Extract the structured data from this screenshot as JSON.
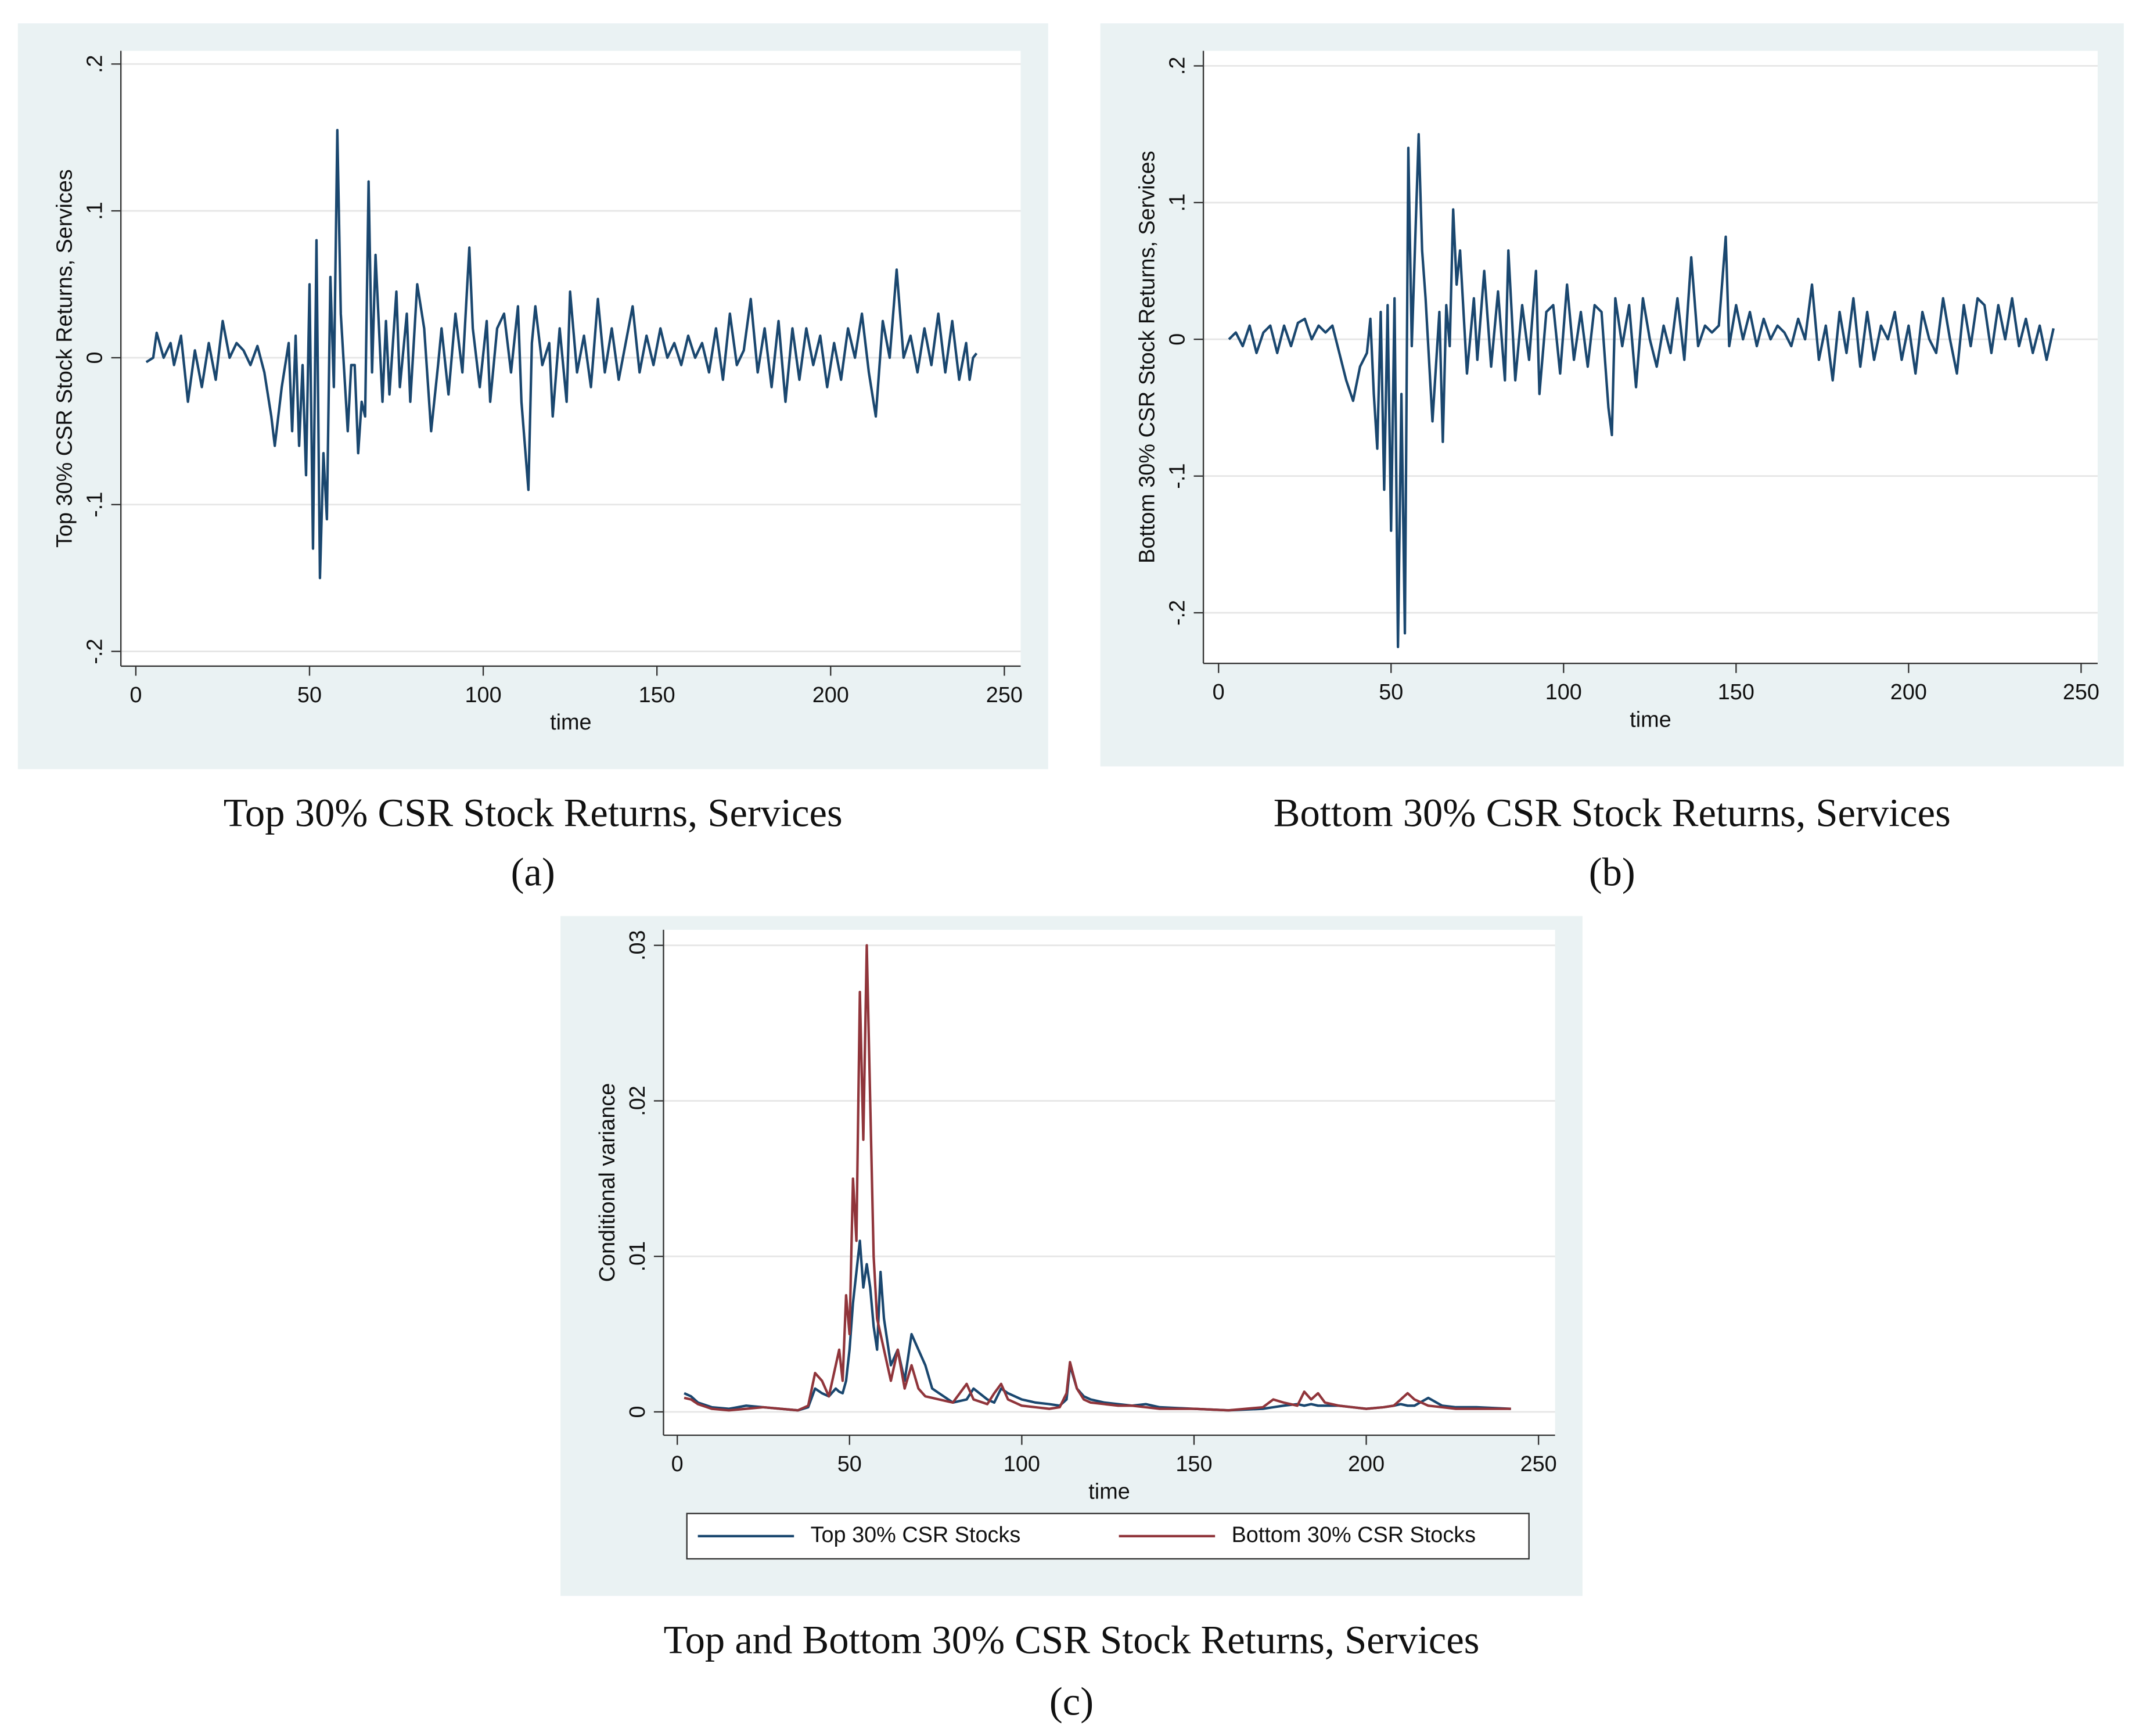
{
  "chart_data": [
    {
      "type": "line",
      "title": "Top 30% CSR Stock Returns, Services",
      "panel_label": "(a)",
      "xlabel": "time",
      "ylabel": "Top 30% CSR Stock Returns, Services",
      "xlim": [
        -4.3,
        254.7
      ],
      "ylim": [
        -0.21,
        0.209
      ],
      "xticks": [
        0,
        50,
        100,
        150,
        200,
        250
      ],
      "yticks": [
        {
          "value": -0.2,
          "label": "-.2"
        },
        {
          "value": -0.1,
          "label": "-.1"
        },
        0,
        {
          "value": 0.1,
          "label": ".1"
        },
        {
          "value": 0.2,
          "label": ".2"
        }
      ],
      "grid": true,
      "background": "#eaf2f3",
      "x": [
        3,
        5,
        6,
        8,
        10,
        11,
        13,
        15,
        17,
        19,
        21,
        23,
        25,
        27,
        29,
        31,
        33,
        35,
        37,
        39,
        40,
        42,
        44,
        45,
        46,
        47,
        48,
        49,
        50,
        51,
        52,
        53,
        54,
        55,
        56,
        57,
        58,
        59,
        61,
        62,
        63,
        64,
        65,
        66,
        67,
        68,
        69,
        71,
        72,
        73,
        75,
        76,
        78,
        79,
        81,
        83,
        85,
        87,
        88,
        90,
        92,
        94,
        96,
        97,
        99,
        101,
        102,
        104,
        106,
        108,
        110,
        111,
        113,
        114,
        115,
        117,
        119,
        120,
        122,
        124,
        125,
        127,
        129,
        131,
        133,
        135,
        137,
        139,
        141,
        143,
        145,
        147,
        149,
        151,
        153,
        155,
        157,
        159,
        161,
        163,
        165,
        167,
        169,
        171,
        173,
        175,
        177,
        179,
        181,
        183,
        185,
        187,
        189,
        191,
        193,
        195,
        197,
        199,
        201,
        203,
        205,
        207,
        209,
        211,
        213,
        215,
        217,
        219,
        221,
        223,
        225,
        227,
        229,
        231,
        233,
        235,
        237,
        239,
        240,
        241,
        242
      ],
      "series": [
        {
          "color": "#1a476f",
          "values": [
            -0.003,
            0.0,
            0.017,
            0.0,
            0.01,
            -0.005,
            0.015,
            -0.03,
            0.005,
            -0.02,
            0.01,
            -0.015,
            0.025,
            0.0,
            0.01,
            0.005,
            -0.005,
            0.008,
            -0.01,
            -0.04,
            -0.06,
            -0.02,
            0.01,
            -0.05,
            0.015,
            -0.06,
            -0.005,
            -0.08,
            0.05,
            -0.13,
            0.08,
            -0.15,
            -0.065,
            -0.11,
            0.055,
            -0.02,
            0.155,
            0.03,
            -0.05,
            -0.005,
            -0.005,
            -0.065,
            -0.03,
            -0.04,
            0.12,
            -0.01,
            0.07,
            -0.03,
            0.025,
            -0.025,
            0.045,
            -0.02,
            0.03,
            -0.03,
            0.05,
            0.02,
            -0.05,
            -0.005,
            0.02,
            -0.025,
            0.03,
            -0.01,
            0.075,
            0.02,
            -0.02,
            0.025,
            -0.03,
            0.02,
            0.03,
            -0.01,
            0.035,
            -0.03,
            -0.09,
            0.01,
            0.035,
            -0.005,
            0.01,
            -0.04,
            0.02,
            -0.03,
            0.045,
            -0.01,
            0.015,
            -0.02,
            0.04,
            -0.01,
            0.02,
            -0.015,
            0.01,
            0.035,
            -0.01,
            0.015,
            -0.005,
            0.02,
            0.0,
            0.01,
            -0.005,
            0.015,
            0.0,
            0.01,
            -0.01,
            0.02,
            -0.015,
            0.03,
            -0.005,
            0.005,
            0.04,
            -0.01,
            0.02,
            -0.02,
            0.025,
            -0.03,
            0.02,
            -0.015,
            0.02,
            -0.005,
            0.015,
            -0.02,
            0.01,
            -0.015,
            0.02,
            0.0,
            0.03,
            -0.01,
            -0.04,
            0.025,
            0.0,
            0.06,
            0.0,
            0.015,
            -0.01,
            0.02,
            -0.005,
            0.03,
            -0.01,
            0.025,
            -0.015,
            0.01,
            -0.015,
            0.0,
            0.003
          ]
        }
      ]
    },
    {
      "type": "line",
      "title": "Bottom 30% CSR Stock Returns, Services",
      "panel_label": "(b)",
      "xlabel": "time",
      "ylabel": "Bottom 30% CSR Stock Returns, Services",
      "xlim": [
        -4.4,
        254.8
      ],
      "ylim": [
        -0.237,
        0.211
      ],
      "xticks": [
        0,
        50,
        100,
        150,
        200,
        250
      ],
      "yticks": [
        {
          "value": -0.2,
          "label": "-.2"
        },
        {
          "value": -0.1,
          "label": "-.1"
        },
        0,
        {
          "value": 0.1,
          "label": ".1"
        },
        {
          "value": 0.2,
          "label": ".2"
        }
      ],
      "grid": true,
      "background": "#eaf2f3",
      "x": [
        3,
        5,
        7,
        9,
        11,
        13,
        15,
        17,
        19,
        21,
        23,
        25,
        27,
        29,
        31,
        33,
        35,
        37,
        39,
        41,
        43,
        44,
        45,
        46,
        47,
        48,
        49,
        50,
        51,
        52,
        53,
        54,
        55,
        56,
        58,
        59,
        60,
        62,
        64,
        65,
        66,
        67,
        68,
        69,
        70,
        72,
        74,
        75,
        77,
        79,
        81,
        83,
        84,
        86,
        88,
        90,
        92,
        93,
        95,
        97,
        99,
        101,
        103,
        105,
        107,
        109,
        111,
        113,
        114,
        115,
        117,
        119,
        121,
        123,
        125,
        127,
        129,
        131,
        133,
        135,
        137,
        139,
        141,
        143,
        145,
        147,
        148,
        150,
        152,
        154,
        156,
        158,
        160,
        162,
        164,
        166,
        168,
        170,
        172,
        174,
        176,
        178,
        180,
        182,
        184,
        186,
        188,
        190,
        192,
        194,
        196,
        198,
        200,
        202,
        204,
        206,
        208,
        210,
        212,
        214,
        216,
        218,
        220,
        222,
        224,
        226,
        228,
        230,
        232,
        234,
        236,
        238,
        240,
        242
      ],
      "series": [
        {
          "color": "#1a476f",
          "values": [
            0.0,
            0.005,
            -0.005,
            0.01,
            -0.01,
            0.005,
            0.01,
            -0.01,
            0.01,
            -0.005,
            0.012,
            0.015,
            0.0,
            0.01,
            0.005,
            0.01,
            -0.01,
            -0.03,
            -0.045,
            -0.02,
            -0.01,
            0.015,
            -0.04,
            -0.08,
            0.02,
            -0.11,
            0.025,
            -0.14,
            0.03,
            -0.225,
            -0.04,
            -0.215,
            0.14,
            -0.005,
            0.15,
            0.065,
            0.03,
            -0.06,
            0.02,
            -0.075,
            0.025,
            -0.005,
            0.095,
            0.04,
            0.065,
            -0.025,
            0.03,
            -0.015,
            0.05,
            -0.02,
            0.035,
            -0.03,
            0.065,
            -0.03,
            0.025,
            -0.015,
            0.05,
            -0.04,
            0.02,
            0.025,
            -0.025,
            0.04,
            -0.015,
            0.02,
            -0.02,
            0.025,
            0.02,
            -0.05,
            -0.07,
            0.03,
            -0.005,
            0.025,
            -0.035,
            0.03,
            0.0,
            -0.02,
            0.01,
            -0.01,
            0.03,
            -0.015,
            0.06,
            -0.005,
            0.01,
            0.005,
            0.01,
            0.075,
            -0.005,
            0.025,
            0.0,
            0.02,
            -0.005,
            0.015,
            0.0,
            0.01,
            0.005,
            -0.005,
            0.015,
            0.0,
            0.04,
            -0.015,
            0.01,
            -0.03,
            0.02,
            -0.01,
            0.03,
            -0.02,
            0.02,
            -0.015,
            0.01,
            0.0,
            0.02,
            -0.015,
            0.01,
            -0.025,
            0.02,
            0.0,
            -0.01,
            0.03,
            0.0,
            -0.025,
            0.025,
            -0.005,
            0.03,
            0.025,
            -0.01,
            0.025,
            0.0,
            0.03,
            -0.005,
            0.015,
            -0.01,
            0.01,
            -0.015,
            0.008
          ]
        }
      ]
    },
    {
      "type": "line",
      "title": "Top and Bottom 30% CSR Stock Returns, Services",
      "panel_label": "(c)",
      "xlabel": "time",
      "ylabel": "Conditional variance",
      "xlim": [
        -4,
        254.8
      ],
      "ylim": [
        -0.0015,
        0.031
      ],
      "xticks": [
        0,
        50,
        100,
        150,
        200,
        250
      ],
      "yticks": [
        0,
        {
          "value": 0.01,
          "label": ".01"
        },
        {
          "value": 0.02,
          "label": ".02"
        },
        {
          "value": 0.03,
          "label": ".03"
        }
      ],
      "grid": true,
      "background": "#eaf2f3",
      "legend": "bottom",
      "x": [
        2,
        4,
        6,
        10,
        15,
        20,
        25,
        30,
        35,
        38,
        40,
        42,
        44,
        46,
        47,
        48,
        49,
        50,
        51,
        52,
        53,
        54,
        55,
        56,
        57,
        58,
        59,
        60,
        62,
        64,
        66,
        68,
        70,
        72,
        74,
        76,
        80,
        84,
        86,
        90,
        92,
        94,
        96,
        100,
        104,
        108,
        111,
        113,
        114,
        116,
        118,
        120,
        124,
        128,
        132,
        136,
        140,
        150,
        160,
        170,
        173,
        176,
        180,
        182,
        184,
        186,
        188,
        192,
        196,
        200,
        205,
        208,
        210,
        212,
        214,
        218,
        222,
        226,
        232,
        242
      ],
      "series": [
        {
          "name": "Top 30% CSR Stocks",
          "color": "#1a476f",
          "values": [
            0.0012,
            0.001,
            0.0006,
            0.0003,
            0.0002,
            0.0004,
            0.0003,
            0.0002,
            0.0001,
            0.0003,
            0.0015,
            0.0012,
            0.001,
            0.0015,
            0.0013,
            0.0012,
            0.002,
            0.004,
            0.007,
            0.009,
            0.011,
            0.008,
            0.0095,
            0.008,
            0.0055,
            0.004,
            0.009,
            0.006,
            0.003,
            0.004,
            0.002,
            0.005,
            0.004,
            0.003,
            0.0015,
            0.0012,
            0.0006,
            0.0008,
            0.0015,
            0.0008,
            0.0006,
            0.0015,
            0.0012,
            0.0008,
            0.0006,
            0.0005,
            0.0004,
            0.0008,
            0.003,
            0.0015,
            0.001,
            0.0008,
            0.0006,
            0.0005,
            0.0004,
            0.0005,
            0.0003,
            0.0002,
            0.0001,
            0.0002,
            0.0003,
            0.0004,
            0.0005,
            0.0004,
            0.0005,
            0.0004,
            0.0004,
            0.0004,
            0.0003,
            0.0002,
            0.0003,
            0.0004,
            0.0005,
            0.0004,
            0.0004,
            0.0009,
            0.0004,
            0.0003,
            0.0003,
            0.0002
          ]
        },
        {
          "name": "Bottom 30% CSR Stocks",
          "color": "#90353b",
          "values": [
            0.0009,
            0.0008,
            0.0005,
            0.0002,
            0.0001,
            0.0002,
            0.0003,
            0.0002,
            0.0001,
            0.0004,
            0.0025,
            0.002,
            0.001,
            0.003,
            0.004,
            0.002,
            0.0075,
            0.005,
            0.015,
            0.011,
            0.027,
            0.0175,
            0.03,
            0.02,
            0.01,
            0.006,
            0.005,
            0.004,
            0.002,
            0.004,
            0.0015,
            0.003,
            0.0015,
            0.001,
            0.0009,
            0.0008,
            0.0006,
            0.0018,
            0.0008,
            0.0005,
            0.0012,
            0.0018,
            0.0008,
            0.0004,
            0.0003,
            0.0002,
            0.0003,
            0.0012,
            0.0032,
            0.0015,
            0.0008,
            0.0006,
            0.0005,
            0.0004,
            0.0004,
            0.0003,
            0.0002,
            0.0002,
            0.0001,
            0.0003,
            0.0008,
            0.0006,
            0.0004,
            0.0013,
            0.0008,
            0.0012,
            0.0006,
            0.0004,
            0.0003,
            0.0002,
            0.0003,
            0.0004,
            0.0008,
            0.0012,
            0.0008,
            0.0004,
            0.0003,
            0.0002,
            0.0002,
            0.0002
          ]
        }
      ]
    }
  ]
}
